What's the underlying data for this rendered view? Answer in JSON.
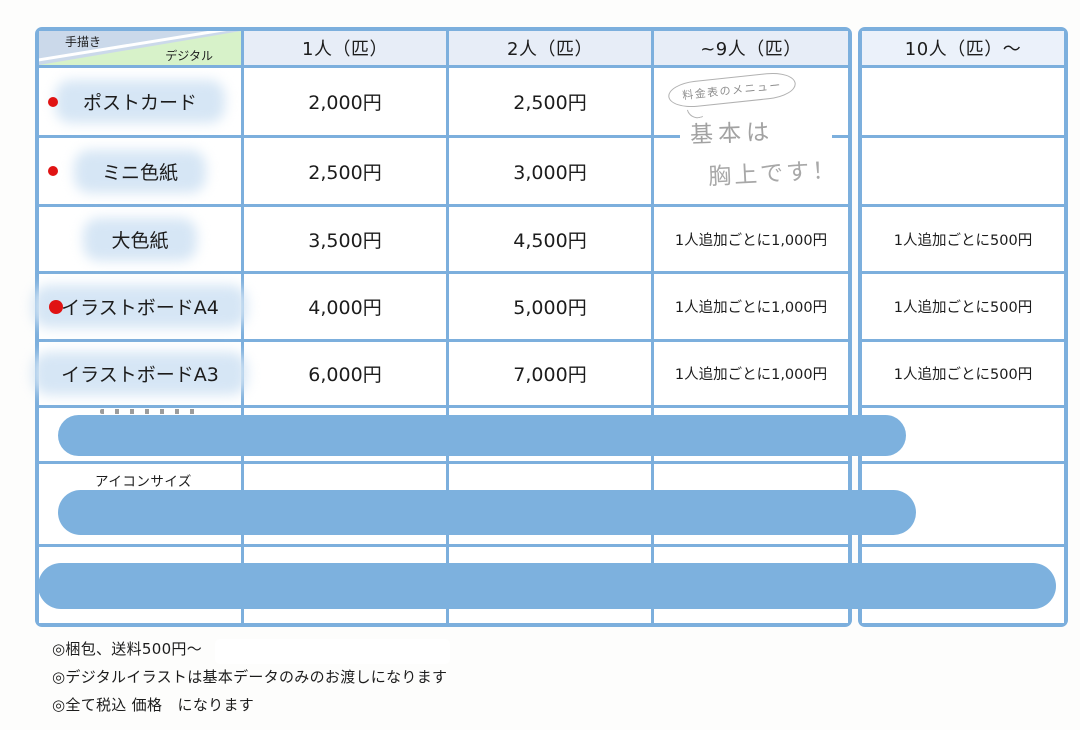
{
  "corner": {
    "top_label": "手描き",
    "bottom_label": "デジタル"
  },
  "headers": {
    "col1": "1人（匹）",
    "col2": "2人（匹）",
    "col3": "~9人（匹）",
    "col4": "10人（匹）～"
  },
  "note": {
    "bubble": "料金表のメニュー",
    "line1": "基本は",
    "line2": "胸上です！"
  },
  "rows": [
    {
      "label": "ポストカード",
      "price1": "2,000円",
      "price2": "2,500円",
      "extra9": "",
      "extra10": ""
    },
    {
      "label": "ミニ色紙",
      "price1": "2,500円",
      "price2": "3,000円",
      "extra9": "",
      "extra10": ""
    },
    {
      "label": "大色紙",
      "price1": "3,500円",
      "price2": "4,500円",
      "extra9": "1人追加ごとに1,000円",
      "extra10": "1人追加ごとに500円"
    },
    {
      "label": "イラストボードA4",
      "price1": "4,000円",
      "price2": "5,000円",
      "extra9": "1人追加ごとに1,000円",
      "extra10": "1人追加ごとに500円"
    },
    {
      "label": "イラストボードA3",
      "price1": "6,000円",
      "price2": "7,000円",
      "extra9": "1人追加ごとに1,000円",
      "extra10": "1人追加ごとに500円"
    },
    {
      "label": "",
      "price1": "",
      "price2": "",
      "extra9": "",
      "extra10": ""
    },
    {
      "label": "アイコンサイズ",
      "price1": "",
      "price2": "",
      "extra9": "",
      "extra10": ""
    },
    {
      "label": "",
      "price1": "",
      "price2": "",
      "extra9": "",
      "extra10": ""
    }
  ],
  "footer": {
    "note1": "◎梱包、送料500円～",
    "note2": "◎デジタルイラストは基本データのみのお渡しになります",
    "note3": "◎全て税込 価格　になります"
  },
  "colors": {
    "grid_blue": "#7cafdd",
    "redaction_blue": "#7db1de",
    "header_fill": "#e7edf7",
    "corner_blue": "#cbd9ea",
    "corner_green": "#d7f2c9",
    "dot_red": "#e01313",
    "handwriting_gray": "#9a9a9a"
  }
}
